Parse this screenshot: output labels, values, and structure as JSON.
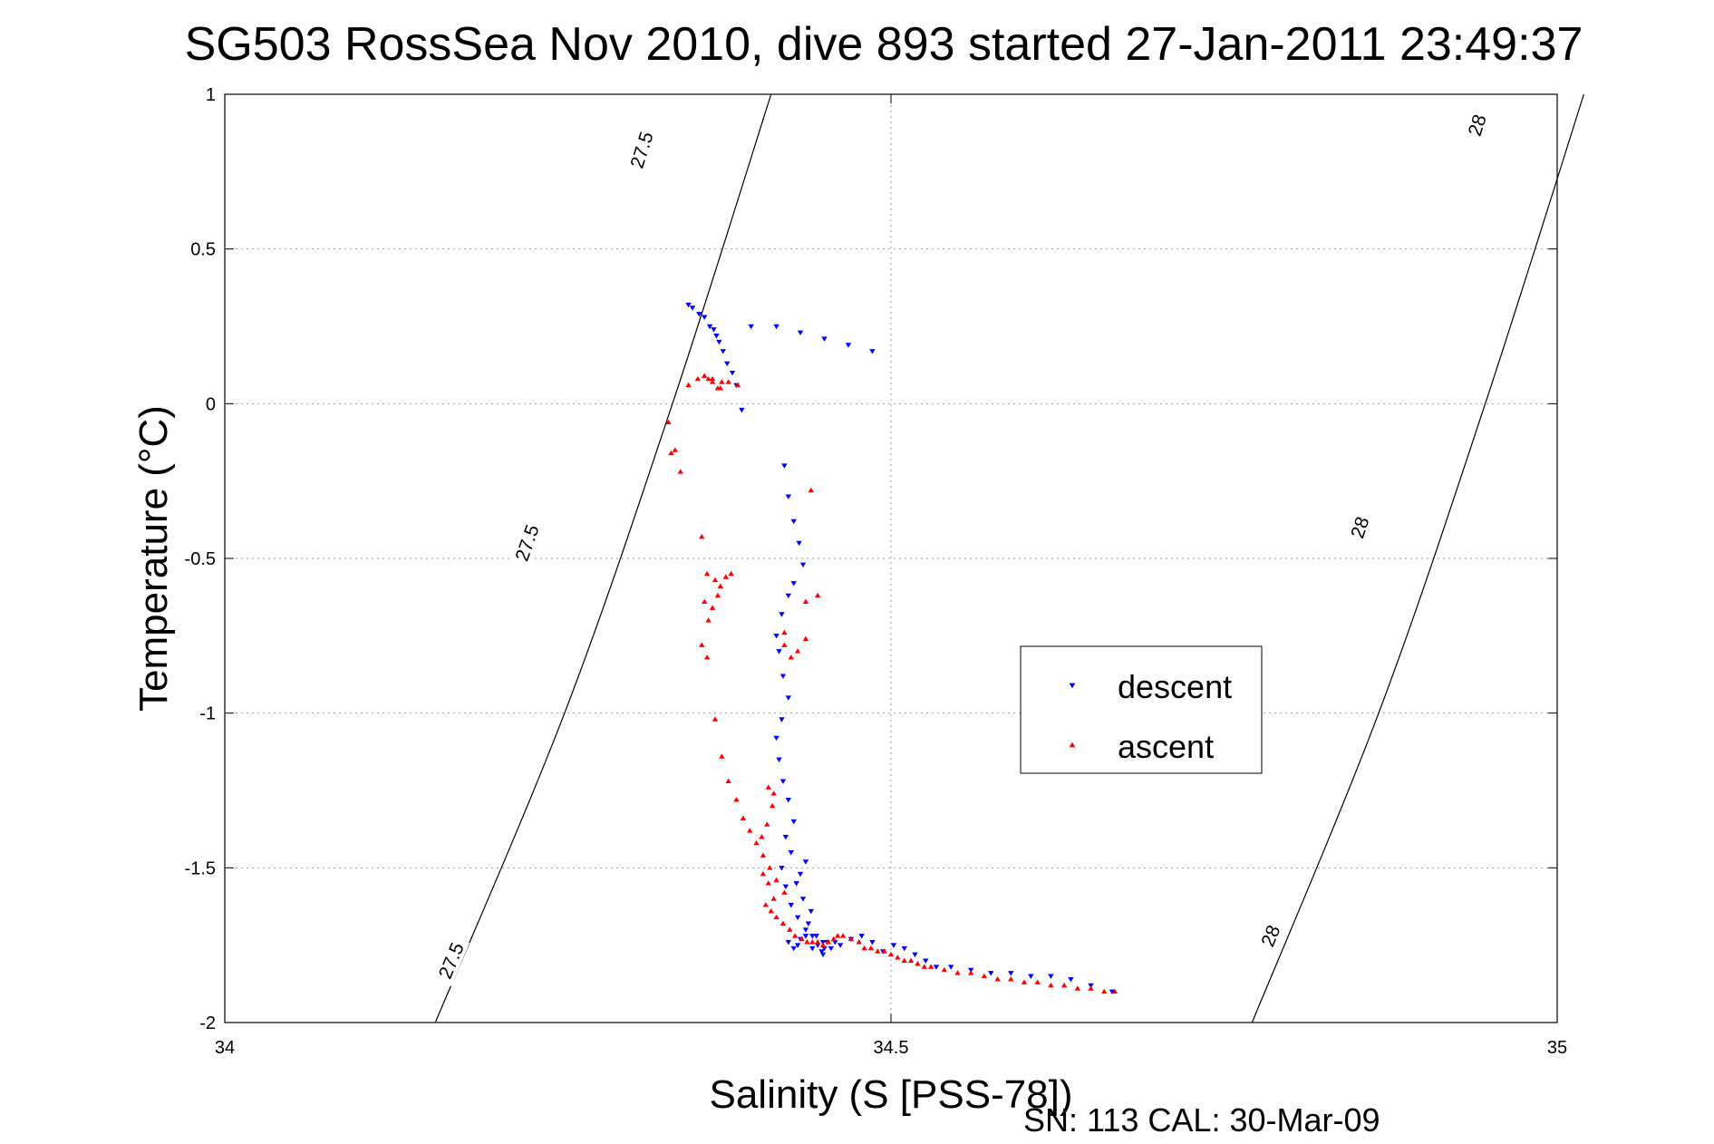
{
  "chart_data": {
    "type": "scatter",
    "title": "SG503 RossSea Nov 2010, dive 893 started 27-Jan-2011 23:49:37",
    "xlabel": "Salinity (S [PSS-78])",
    "ylabel": "Temperature (°C)",
    "footer": "SN: 113  CAL: 30-Mar-09",
    "xlim": [
      34,
      35
    ],
    "ylim": [
      -2,
      1
    ],
    "x_ticks": [
      34,
      34.5,
      35
    ],
    "x_tick_labels": [
      "34",
      "34.5",
      "35"
    ],
    "y_ticks": [
      -2,
      -1.5,
      -1,
      -0.5,
      0,
      0.5,
      1
    ],
    "y_tick_labels": [
      "-2",
      "-1.5",
      "-1",
      "-0.5",
      "0",
      "0.5",
      "1"
    ],
    "grid": true,
    "legend_position": "center-right",
    "isopycnals": [
      {
        "value_label": "27.5",
        "points": [
          [
            34.158,
            -2
          ],
          [
            34.255,
            -1
          ],
          [
            34.336,
            0
          ],
          [
            34.41,
            1
          ]
        ],
        "label_positions": [
          [
            34.17,
            -1.8
          ],
          [
            34.227,
            -0.45
          ],
          [
            34.313,
            0.82
          ]
        ]
      },
      {
        "value_label": "28",
        "points": [
          [
            34.771,
            -2
          ],
          [
            34.866,
            -1
          ],
          [
            34.946,
            0
          ],
          [
            35.02,
            1
          ]
        ],
        "label_positions": [
          [
            34.785,
            -1.72
          ],
          [
            34.852,
            -0.4
          ],
          [
            34.94,
            0.9
          ]
        ]
      }
    ],
    "series": [
      {
        "name": "descent",
        "color": "#0000ff",
        "marker": "triangle-down",
        "x": [
          34.348,
          34.351,
          34.356,
          34.36,
          34.364,
          34.367,
          34.369,
          34.371,
          34.374,
          34.377,
          34.381,
          34.384,
          34.388,
          34.395,
          34.414,
          34.432,
          34.45,
          34.468,
          34.486,
          34.42,
          34.423,
          34.427,
          34.431,
          34.434,
          34.427,
          34.423,
          34.418,
          34.414,
          34.416,
          34.419,
          34.423,
          34.418,
          34.414,
          34.416,
          34.419,
          34.423,
          34.427,
          34.421,
          34.425,
          34.418,
          34.421,
          34.425,
          34.43,
          34.436,
          34.43,
          34.423,
          34.427,
          34.432,
          34.441,
          34.432,
          34.429,
          34.436,
          34.434,
          34.44,
          34.438,
          34.436,
          34.444,
          34.441,
          34.448,
          34.445,
          34.449,
          34.455,
          34.452,
          34.449,
          34.45,
          34.458,
          34.462,
          34.47,
          34.478,
          34.486,
          34.494,
          34.502,
          34.51,
          34.518,
          34.526,
          34.534,
          34.545,
          34.56,
          34.575,
          34.59,
          34.605,
          34.62,
          34.635,
          34.65,
          34.666
        ],
        "y": [
          0.32,
          0.31,
          0.29,
          0.28,
          0.25,
          0.24,
          0.22,
          0.2,
          0.17,
          0.13,
          0.1,
          0.06,
          -0.02,
          0.25,
          0.25,
          0.23,
          0.21,
          0.19,
          0.17,
          -0.2,
          -0.3,
          -0.38,
          -0.45,
          -0.52,
          -0.58,
          -0.62,
          -0.68,
          -0.75,
          -0.8,
          -0.88,
          -0.95,
          -1.02,
          -1.08,
          -1.15,
          -1.22,
          -1.28,
          -1.35,
          -1.4,
          -1.45,
          -1.5,
          -1.56,
          -1.62,
          -1.66,
          -1.72,
          -1.75,
          -1.74,
          -1.76,
          -1.73,
          -1.72,
          -1.52,
          -1.55,
          -1.48,
          -1.6,
          -1.64,
          -1.68,
          -1.7,
          -1.72,
          -1.76,
          -1.77,
          -1.75,
          -1.74,
          -1.76,
          -1.74,
          -1.78,
          -1.76,
          -1.74,
          -1.75,
          -1.73,
          -1.72,
          -1.74,
          -1.77,
          -1.75,
          -1.76,
          -1.78,
          -1.8,
          -1.82,
          -1.82,
          -1.83,
          -1.84,
          -1.84,
          -1.85,
          -1.85,
          -1.86,
          -1.88,
          -1.9
        ]
      },
      {
        "name": "ascent",
        "color": "#ff0000",
        "marker": "triangle-up",
        "x": [
          34.348,
          34.355,
          34.36,
          34.366,
          34.373,
          34.378,
          34.385,
          34.363,
          34.366,
          34.37,
          34.372,
          34.358,
          34.362,
          34.368,
          34.372,
          34.36,
          34.363,
          34.358,
          34.362,
          34.366,
          34.37,
          34.376,
          34.38,
          34.368,
          34.373,
          34.378,
          34.384,
          34.389,
          34.394,
          34.399,
          34.404,
          34.409,
          34.414,
          34.42,
          34.411,
          34.407,
          34.403,
          34.408,
          34.412,
          34.404,
          34.408,
          34.412,
          34.406,
          34.41,
          34.414,
          34.419,
          34.424,
          34.428,
          34.433,
          34.437,
          34.441,
          34.445,
          34.449,
          34.453,
          34.457,
          34.46,
          34.464,
          34.47,
          34.476,
          34.48,
          34.485,
          34.49,
          34.495,
          34.5,
          34.505,
          34.51,
          34.515,
          34.52,
          34.525,
          34.53,
          34.54,
          34.55,
          34.56,
          34.57,
          34.58,
          34.59,
          34.6,
          34.61,
          34.62,
          34.63,
          34.64,
          34.65,
          34.66,
          34.668,
          34.333,
          34.338,
          34.342,
          34.335,
          34.44,
          34.445,
          34.436,
          34.42,
          34.42,
          34.425,
          34.43,
          34.436
        ],
        "y": [
          0.06,
          0.08,
          0.09,
          0.08,
          0.07,
          0.07,
          0.06,
          0.08,
          0.07,
          0.05,
          0.05,
          -0.43,
          -0.55,
          -0.57,
          -0.59,
          -0.64,
          -0.7,
          -0.78,
          -0.82,
          -0.66,
          -0.62,
          -0.56,
          -0.55,
          -1.02,
          -1.14,
          -1.22,
          -1.28,
          -1.34,
          -1.38,
          -1.42,
          -1.46,
          -1.5,
          -1.54,
          -1.58,
          -1.3,
          -1.36,
          -1.4,
          -1.24,
          -1.26,
          -1.52,
          -1.55,
          -1.6,
          -1.62,
          -1.64,
          -1.66,
          -1.68,
          -1.7,
          -1.72,
          -1.73,
          -1.74,
          -1.74,
          -1.74,
          -1.75,
          -1.74,
          -1.73,
          -1.72,
          -1.72,
          -1.73,
          -1.74,
          -1.76,
          -1.76,
          -1.77,
          -1.77,
          -1.78,
          -1.79,
          -1.8,
          -1.8,
          -1.81,
          -1.82,
          -1.82,
          -1.83,
          -1.84,
          -1.84,
          -1.85,
          -1.86,
          -1.86,
          -1.87,
          -1.87,
          -1.88,
          -1.88,
          -1.89,
          -1.89,
          -1.9,
          -1.9,
          -0.06,
          -0.15,
          -0.22,
          -0.16,
          -0.28,
          -0.62,
          -0.64,
          -0.74,
          -0.78,
          -0.82,
          -0.8,
          -0.76
        ]
      }
    ]
  }
}
